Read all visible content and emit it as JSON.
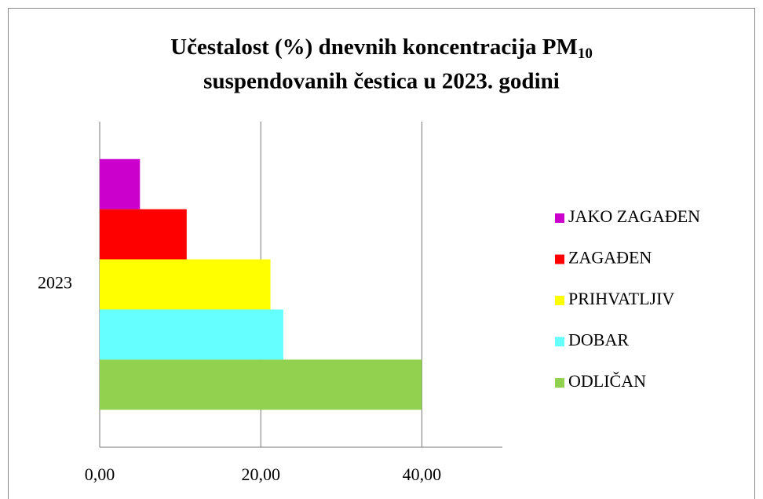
{
  "chart_data": {
    "type": "bar",
    "orientation": "horizontal",
    "title": [
      "Učestalost (%) dnevnih koncentracija PM",
      "10",
      "suspendovanih čestica u 2023. godini"
    ],
    "categories": [
      "2023"
    ],
    "series": [
      {
        "name": "JAKO ZAGAĐEN",
        "color": "#cc00cc",
        "values": [
          5.0
        ]
      },
      {
        "name": "ZAGAĐEN",
        "color": "#ff0000",
        "values": [
          10.8
        ]
      },
      {
        "name": "PRIHVATLJIV",
        "color": "#ffff00",
        "values": [
          21.2
        ]
      },
      {
        "name": "DOBAR",
        "color": "#66ffff",
        "values": [
          22.8
        ]
      },
      {
        "name": "ODLIČAN",
        "color": "#92d050",
        "values": [
          40.0
        ]
      }
    ],
    "xlim": [
      0,
      50
    ],
    "xticks": [
      {
        "value": 0,
        "label": "0,00"
      },
      {
        "value": 20,
        "label": "20,00"
      },
      {
        "value": 40,
        "label": "40,00"
      }
    ],
    "grid": true,
    "legend": "right"
  }
}
